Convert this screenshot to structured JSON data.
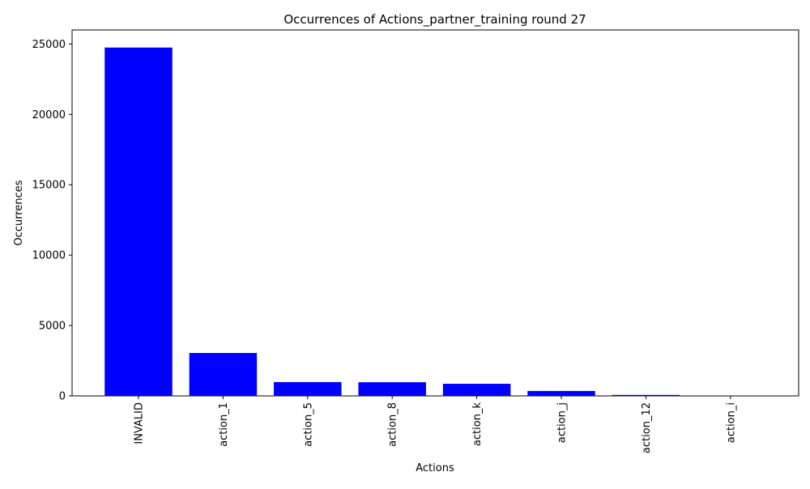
{
  "chart_data": {
    "type": "bar",
    "title": "Occurrences of Actions_partner_training round 27",
    "xlabel": "Actions",
    "ylabel": "Occurrences",
    "categories": [
      "INVALID",
      "action_1",
      "action_5",
      "action_8",
      "action_k",
      "action_j",
      "action_12",
      "action_i"
    ],
    "values": [
      24750,
      3050,
      980,
      970,
      860,
      350,
      70,
      5
    ],
    "ylim": [
      0,
      26000
    ],
    "yticks": [
      0,
      5000,
      10000,
      15000,
      20000,
      25000
    ],
    "ytick_labels": [
      "0",
      "5000",
      "10000",
      "15000",
      "20000",
      "25000"
    ],
    "bar_color": "#0000ff",
    "grid": false,
    "legend": "none",
    "xtick_rotation": "vertical"
  }
}
